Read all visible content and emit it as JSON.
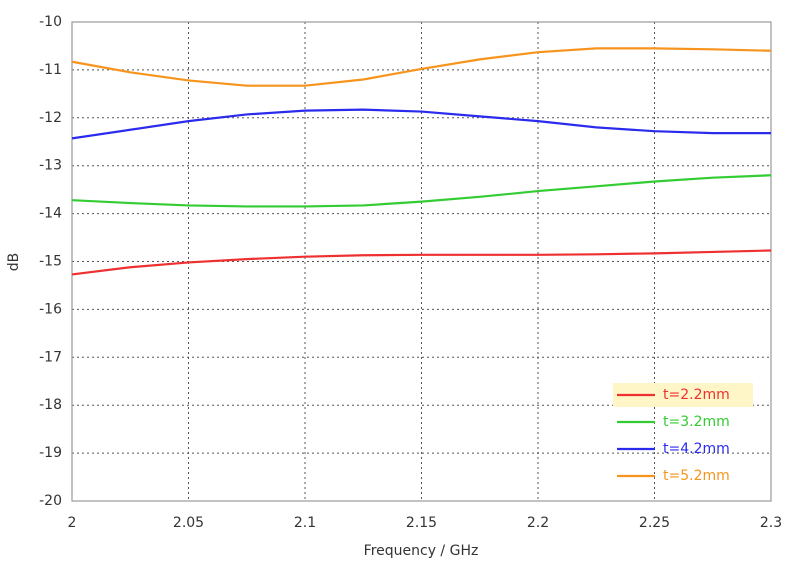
{
  "chart_data": {
    "type": "line",
    "x_label": "Frequency / GHz",
    "y_label": "dB",
    "x": [
      2,
      2.025,
      2.05,
      2.075,
      2.1,
      2.125,
      2.15,
      2.175,
      2.2,
      2.225,
      2.25,
      2.275,
      2.3
    ],
    "series": [
      {
        "name": "t=2.2mm",
        "color": "#ee3030",
        "values": [
          -15.27,
          -15.12,
          -15.02,
          -14.95,
          -14.9,
          -14.87,
          -14.86,
          -14.86,
          -14.86,
          -14.85,
          -14.83,
          -14.8,
          -14.77
        ]
      },
      {
        "name": "t=3.2mm",
        "color": "#33cc33",
        "values": [
          -13.72,
          -13.78,
          -13.83,
          -13.85,
          -13.85,
          -13.83,
          -13.75,
          -13.65,
          -13.53,
          -13.43,
          -13.33,
          -13.25,
          -13.2
        ]
      },
      {
        "name": "t=4.2mm",
        "color": "#2b2bee",
        "values": [
          -12.43,
          -12.25,
          -12.07,
          -11.93,
          -11.85,
          -11.83,
          -11.87,
          -11.97,
          -12.07,
          -12.2,
          -12.28,
          -12.32,
          -12.32
        ]
      },
      {
        "name": "t=5.2mm",
        "color": "#f7941d",
        "values": [
          -10.83,
          -11.05,
          -11.22,
          -11.33,
          -11.33,
          -11.2,
          -10.98,
          -10.78,
          -10.63,
          -10.55,
          -10.55,
          -10.57,
          -10.6
        ]
      }
    ],
    "xlim": [
      2,
      2.3
    ],
    "xticks": [
      2,
      2.05,
      2.1,
      2.15,
      2.2,
      2.25,
      2.3
    ],
    "ylim": [
      -20,
      -10
    ],
    "yticks": [
      -20,
      -19,
      -18,
      -17,
      -16,
      -15,
      -14,
      -13,
      -12,
      -11,
      -10
    ],
    "grid": true,
    "legend": "lower right"
  }
}
